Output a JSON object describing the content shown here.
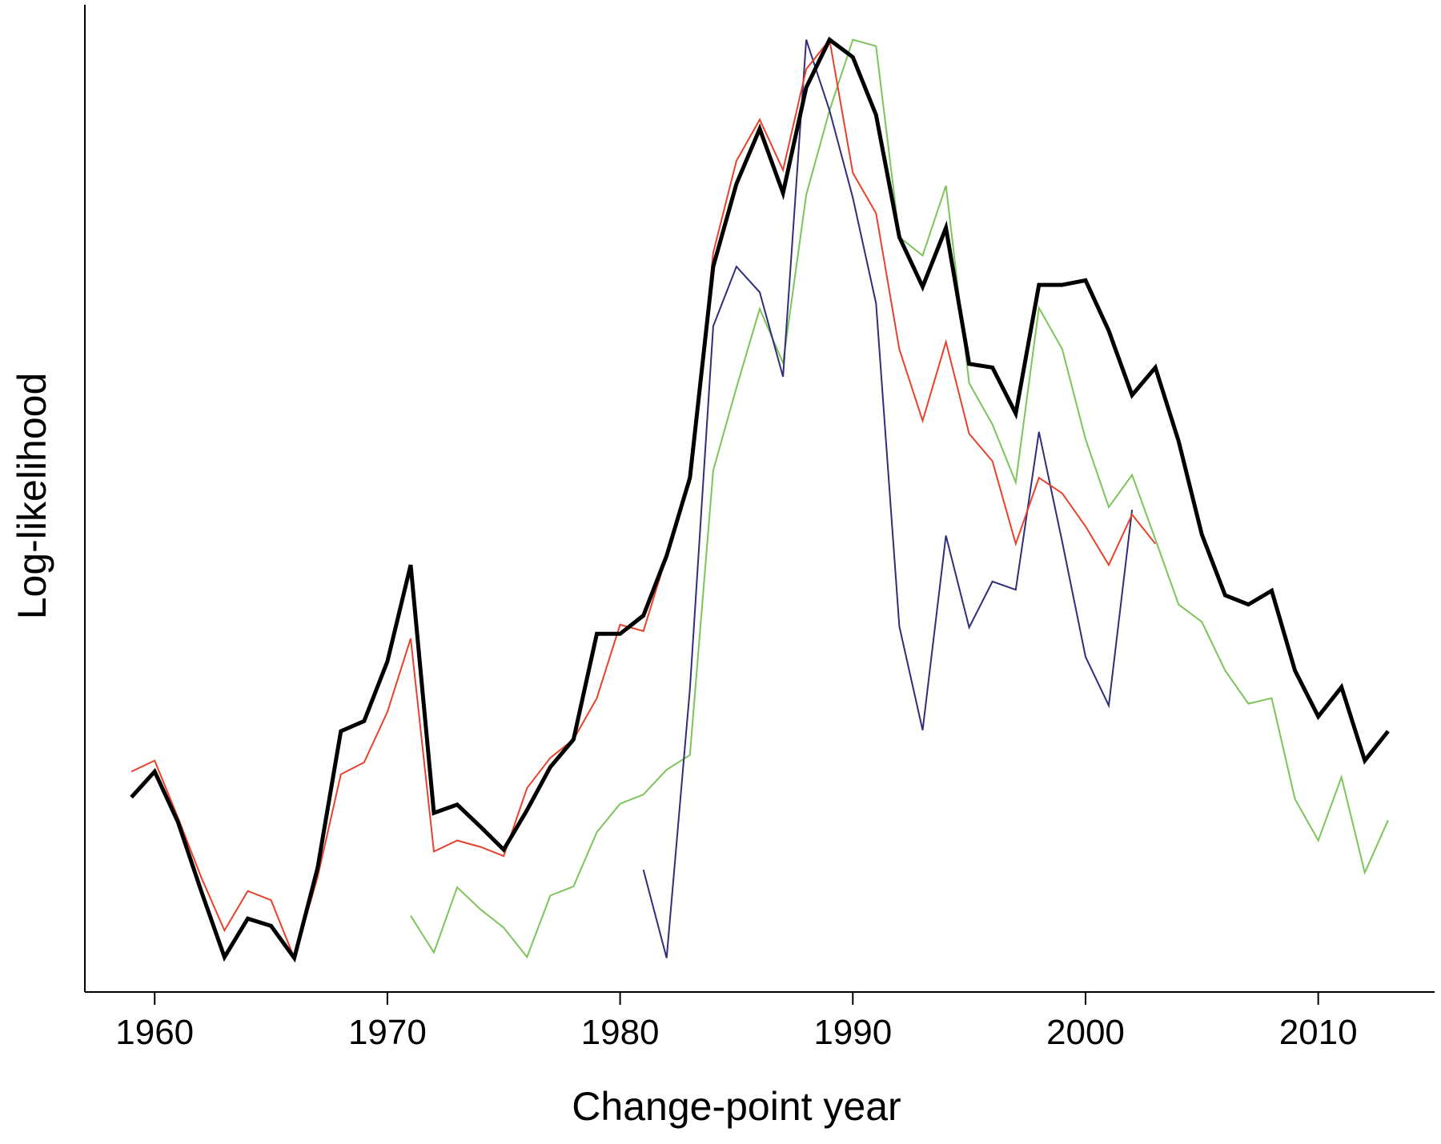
{
  "chart_data": {
    "type": "line",
    "x_label": "Change-point year",
    "y_label": "Log-likelihood",
    "x": [
      1959,
      1960,
      1961,
      1962,
      1963,
      1964,
      1965,
      1966,
      1967,
      1968,
      1969,
      1970,
      1971,
      1972,
      1973,
      1974,
      1975,
      1976,
      1977,
      1978,
      1979,
      1980,
      1981,
      1982,
      1983,
      1984,
      1985,
      1986,
      1987,
      1988,
      1989,
      1990,
      1991,
      1992,
      1993,
      1994,
      1995,
      1996,
      1997,
      1998,
      1999,
      2000,
      2001,
      2002,
      2003,
      2004,
      2005,
      2006,
      2007,
      2008,
      2009,
      2010,
      2011,
      2012,
      2013
    ],
    "xlim": [
      1957,
      2015
    ],
    "xticks": [
      1960,
      1970,
      1980,
      1990,
      2000,
      2010
    ],
    "ylim": [
      0,
      107.5
    ],
    "series": [
      {
        "color": "#7dc45a",
        "width": 2,
        "values": [
          null,
          null,
          null,
          null,
          null,
          null,
          null,
          null,
          null,
          null,
          null,
          null,
          8.3,
          4.3,
          11.4,
          9,
          7,
          3.8,
          10.5,
          11.5,
          17.4,
          20.5,
          21.5,
          24.2,
          25.8,
          56.8,
          65.8,
          74.4,
          68.5,
          86.8,
          96,
          103.7,
          103,
          82.2,
          80.2,
          87.8,
          66.3,
          61.8,
          55.5,
          74.5,
          70,
          60.2,
          52.8,
          56.3,
          49.3,
          42.2,
          40.3,
          35,
          31.4,
          32,
          21,
          16.5,
          23.4,
          13,
          18.7
        ]
      },
      {
        "color": "#2e2e7a",
        "width": 2,
        "values": [
          null,
          null,
          null,
          null,
          null,
          null,
          null,
          null,
          null,
          null,
          null,
          null,
          null,
          null,
          null,
          null,
          null,
          null,
          null,
          null,
          null,
          null,
          13.3,
          3.7,
          33,
          72.5,
          79,
          76.2,
          67,
          103.7,
          96,
          86.5,
          75,
          39.8,
          28.5,
          49.7,
          39.7,
          44.7,
          43.8,
          61,
          49,
          36.5,
          31.2,
          52.5,
          null,
          null,
          null,
          null,
          null,
          null,
          null,
          null,
          null,
          null,
          null
        ]
      },
      {
        "color": "#e8412c",
        "width": 2,
        "values": [
          24,
          25.2,
          19,
          12.5,
          6.7,
          11,
          10,
          3.7,
          12.5,
          23.7,
          25,
          30.5,
          38.5,
          15.3,
          16.5,
          15.8,
          14.8,
          22.2,
          25.5,
          27.5,
          32,
          40,
          39.3,
          47.5,
          55.5,
          80.5,
          90.5,
          95,
          89.5,
          100.5,
          103.7,
          89.2,
          84.8,
          70,
          62.2,
          70.8,
          60.8,
          57.8,
          48.8,
          56,
          54.3,
          50.7,
          46.5,
          52,
          48.8,
          null,
          null,
          null,
          null,
          null,
          null,
          null,
          null,
          null,
          null
        ]
      },
      {
        "color": "#000000",
        "width": 5,
        "values": [
          21.2,
          24,
          18.5,
          11,
          3.8,
          8,
          7.2,
          3.7,
          13.5,
          28.4,
          29.5,
          36,
          46.5,
          19.5,
          20.4,
          18,
          15.5,
          19.8,
          24.5,
          27.5,
          39,
          39,
          41,
          47.5,
          56,
          79,
          88,
          94,
          87,
          98.5,
          103.7,
          101.8,
          95.5,
          82.2,
          76.8,
          83.2,
          68.4,
          68,
          63,
          77,
          77,
          77.5,
          72,
          65,
          68,
          60,
          49.8,
          43.2,
          42.2,
          43.7,
          35,
          30,
          33.2,
          25.2,
          28.4
        ]
      }
    ]
  }
}
